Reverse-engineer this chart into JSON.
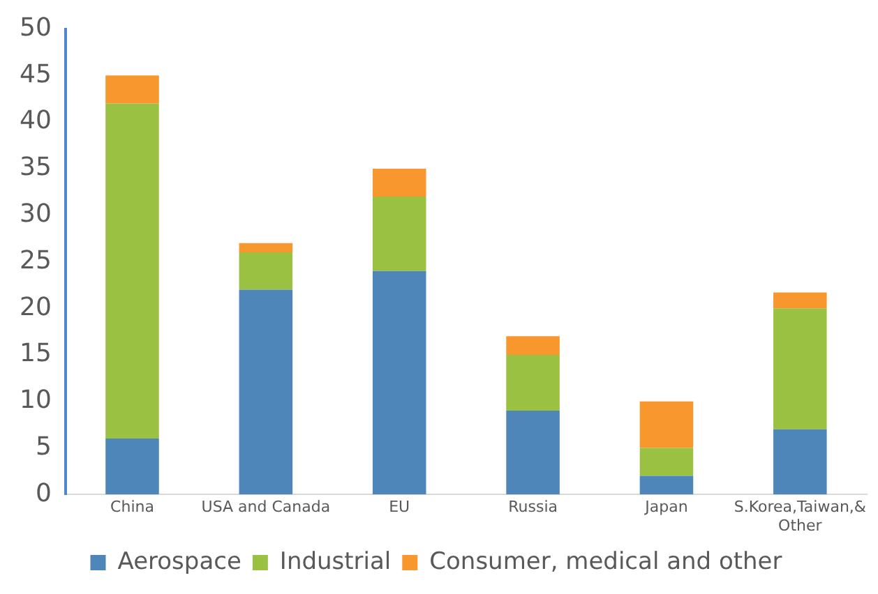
{
  "chart_data": {
    "type": "bar",
    "stacked": true,
    "categories": [
      "China",
      "USA and Canada",
      "EU",
      "Russia",
      "Japan",
      "S.Korea,Taiwan,& Other"
    ],
    "series": [
      {
        "name": "Aerospace",
        "color": "#4f86b9",
        "values": [
          6,
          22,
          24,
          9,
          2,
          7
        ]
      },
      {
        "name": "Industrial",
        "color": "#9bc143",
        "values": [
          36,
          4,
          8,
          6,
          3,
          13
        ]
      },
      {
        "name": "Consumer, medical and other",
        "color": "#f7972d",
        "values": [
          3,
          1,
          3,
          2,
          5,
          1.7
        ]
      }
    ],
    "ylim": [
      0,
      50
    ],
    "yticks": [
      0,
      5,
      10,
      15,
      20,
      25,
      30,
      35,
      40,
      45,
      50
    ],
    "grid": false,
    "legend": "bottom"
  }
}
